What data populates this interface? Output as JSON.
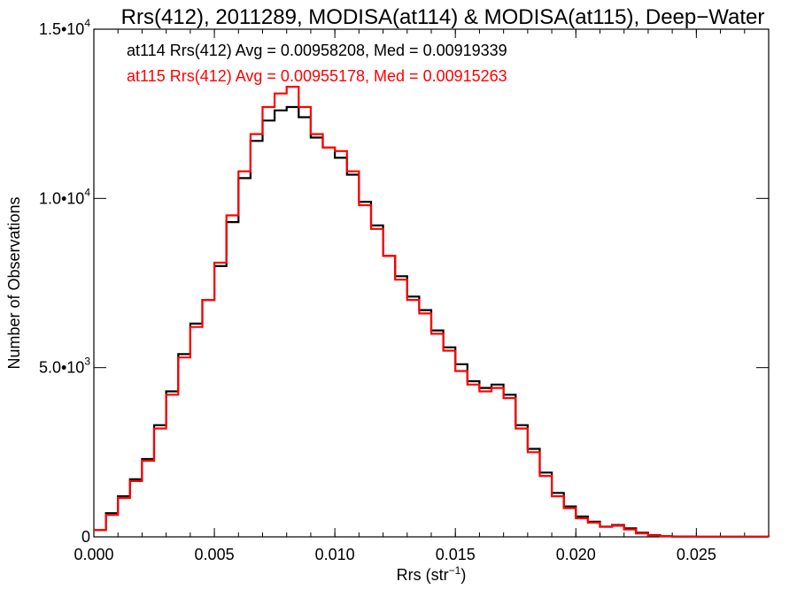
{
  "chart_data": {
    "type": "line",
    "title": "Rrs(412), 2011289, MODISA(at114) & MODISA(at115), Deep−Water",
    "xlabel": {
      "base": "Rrs (str",
      "sup": "−1",
      "tail": ")"
    },
    "ylabel": "Number of Observations",
    "xlim": [
      0.0,
      0.028
    ],
    "ylim": [
      0,
      15000
    ],
    "x_ticks": [
      {
        "value": 0.0,
        "label": "0.000"
      },
      {
        "value": 0.005,
        "label": "0.005"
      },
      {
        "value": 0.01,
        "label": "0.010"
      },
      {
        "value": 0.015,
        "label": "0.015"
      },
      {
        "value": 0.02,
        "label": "0.020"
      },
      {
        "value": 0.025,
        "label": "0.025"
      }
    ],
    "y_ticks": [
      {
        "value": 0,
        "label": "0",
        "sup": ""
      },
      {
        "value": 5000,
        "label": "5.0•10",
        "sup": "3"
      },
      {
        "value": 10000,
        "label": "1.0•10",
        "sup": "4"
      },
      {
        "value": 15000,
        "label": "1.5•10",
        "sup": "4"
      }
    ],
    "annotations": [
      {
        "text": "at114 Rrs(412) Avg = 0.00958208, Med = 0.00919339",
        "color": "#000000"
      },
      {
        "text": "at115 Rrs(412) Avg = 0.00955178, Med = 0.00915263",
        "color": "#ff0000"
      }
    ],
    "series": [
      {
        "color": "#000000",
        "x": [
          0.0,
          0.0005,
          0.001,
          0.0015,
          0.002,
          0.0025,
          0.003,
          0.0035,
          0.004,
          0.0045,
          0.005,
          0.0055,
          0.006,
          0.0065,
          0.007,
          0.0075,
          0.008,
          0.0085,
          0.009,
          0.0095,
          0.01,
          0.0105,
          0.011,
          0.0115,
          0.012,
          0.0125,
          0.013,
          0.0135,
          0.014,
          0.0145,
          0.015,
          0.0155,
          0.016,
          0.0165,
          0.017,
          0.0175,
          0.018,
          0.0185,
          0.019,
          0.0195,
          0.02,
          0.0205,
          0.021,
          0.0215,
          0.022,
          0.0225,
          0.023,
          0.0235,
          0.024,
          0.025,
          0.028
        ],
        "y": [
          200,
          700,
          1200,
          1700,
          2300,
          3300,
          4300,
          5400,
          6300,
          7000,
          8000,
          9300,
          10600,
          11700,
          12300,
          12600,
          12700,
          12400,
          11800,
          11500,
          11200,
          10700,
          9900,
          9200,
          8300,
          7700,
          7100,
          6700,
          6100,
          5600,
          5100,
          4600,
          4400,
          4500,
          4200,
          3300,
          2600,
          1900,
          1300,
          900,
          600,
          450,
          300,
          350,
          250,
          120,
          50,
          20,
          10,
          5,
          0
        ]
      },
      {
        "color": "#ff0000",
        "x": [
          0.0,
          0.0005,
          0.001,
          0.0015,
          0.002,
          0.0025,
          0.003,
          0.0035,
          0.004,
          0.0045,
          0.005,
          0.0055,
          0.006,
          0.0065,
          0.007,
          0.0075,
          0.008,
          0.0085,
          0.009,
          0.0095,
          0.01,
          0.0105,
          0.011,
          0.0115,
          0.012,
          0.0125,
          0.013,
          0.0135,
          0.014,
          0.0145,
          0.015,
          0.0155,
          0.016,
          0.0165,
          0.017,
          0.0175,
          0.018,
          0.0185,
          0.019,
          0.0195,
          0.02,
          0.0205,
          0.021,
          0.0215,
          0.022,
          0.0225,
          0.023,
          0.0235,
          0.024,
          0.025,
          0.028
        ],
        "y": [
          200,
          650,
          1150,
          1650,
          2250,
          3200,
          4200,
          5300,
          6200,
          7000,
          8100,
          9500,
          10800,
          11900,
          12700,
          13100,
          13300,
          12700,
          11900,
          11500,
          11400,
          10800,
          9800,
          9100,
          8300,
          7600,
          7000,
          6600,
          6000,
          5500,
          4900,
          4500,
          4300,
          4400,
          4100,
          3200,
          2500,
          1800,
          1200,
          850,
          550,
          420,
          300,
          330,
          220,
          100,
          40,
          15,
          8,
          4,
          0
        ]
      }
    ]
  }
}
